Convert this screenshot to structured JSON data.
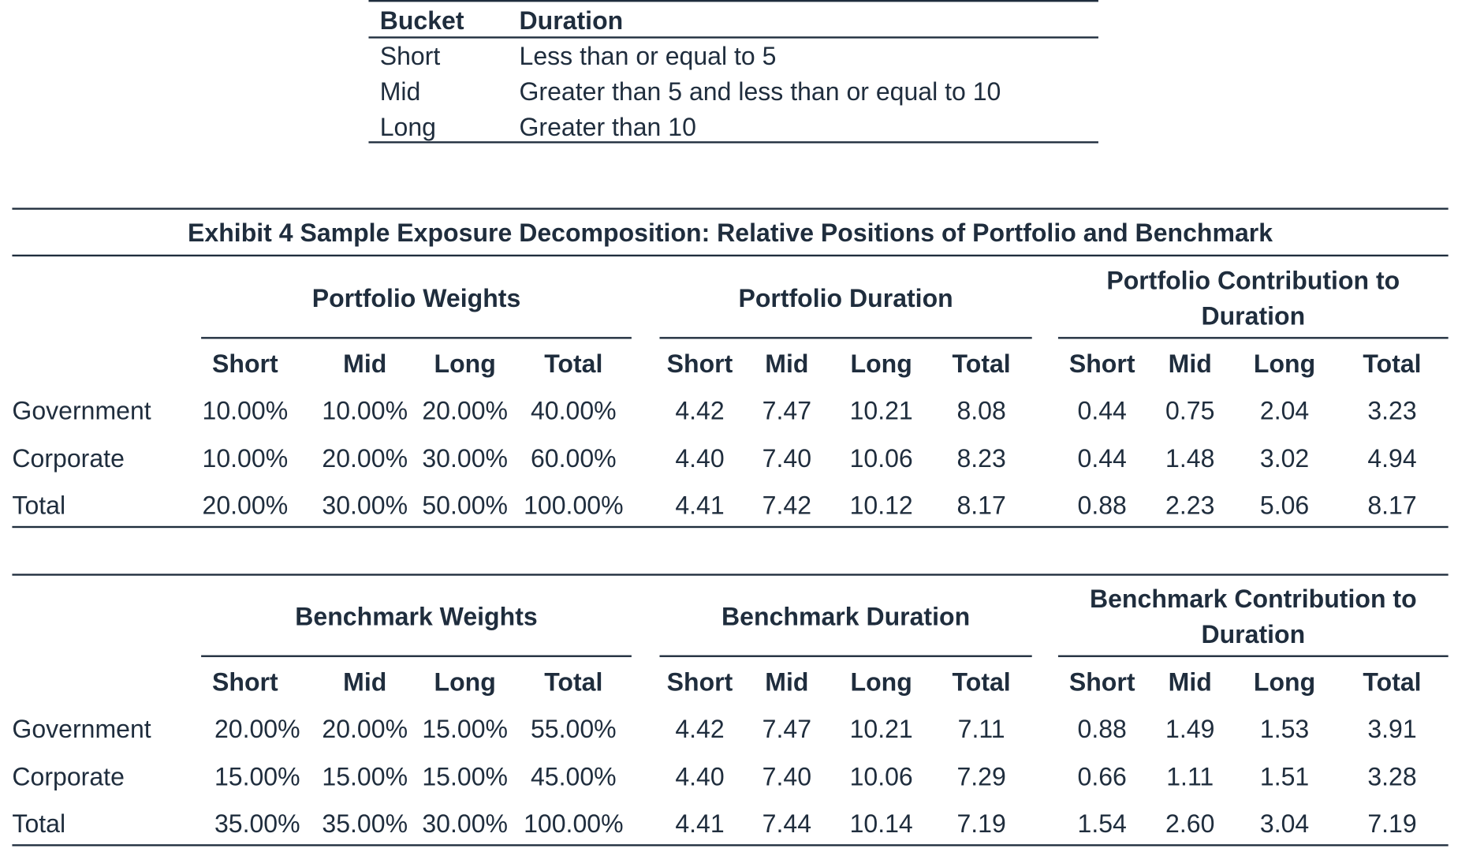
{
  "bucket_table": {
    "headers": [
      "Bucket",
      "Duration"
    ],
    "rows": [
      [
        "Short",
        "Less than or equal to 5"
      ],
      [
        "Mid",
        "Greater than 5 and less than or equal to 10"
      ],
      [
        "Long",
        "Greater than 10"
      ]
    ]
  },
  "exhibit": {
    "title": "Exhibit 4  Sample Exposure Decomposition: Relative Positions of Portfolio and Benchmark"
  },
  "portfolio": {
    "groups": [
      "Portfolio Weights",
      "Portfolio Duration",
      "Portfolio Contribution to",
      "Duration"
    ],
    "subheaders": [
      "Short",
      "Mid",
      "Long",
      "Total",
      "Short",
      "Mid",
      "Long",
      "Total",
      "Short",
      "Mid",
      "Long",
      "Total"
    ],
    "rows": [
      [
        "Government",
        "10.00%",
        "10.00%",
        "20.00%",
        "40.00%",
        "4.42",
        "7.47",
        "10.21",
        "8.08",
        "0.44",
        "0.75",
        "2.04",
        "3.23"
      ],
      [
        "Corporate",
        "10.00%",
        "20.00%",
        "30.00%",
        "60.00%",
        "4.40",
        "7.40",
        "10.06",
        "8.23",
        "0.44",
        "1.48",
        "3.02",
        "4.94"
      ],
      [
        "Total",
        "20.00%",
        "30.00%",
        "50.00%",
        "100.00%",
        "4.41",
        "7.42",
        "10.12",
        "8.17",
        "0.88",
        "2.23",
        "5.06",
        "8.17"
      ]
    ]
  },
  "benchmark": {
    "groups": [
      "Benchmark Weights",
      "Benchmark Duration",
      "Benchmark Contribution to",
      "Duration"
    ],
    "subheaders": [
      "Short",
      "Mid",
      "Long",
      "Total",
      "Short",
      "Mid",
      "Long",
      "Total",
      "Short",
      "Mid",
      "Long",
      "Total"
    ],
    "rows": [
      [
        "Government",
        "20.00%",
        "20.00%",
        "15.00%",
        "55.00%",
        "4.42",
        "7.47",
        "10.21",
        "7.11",
        "0.88",
        "1.49",
        "1.53",
        "3.91"
      ],
      [
        "Corporate",
        "15.00%",
        "15.00%",
        "15.00%",
        "45.00%",
        "4.40",
        "7.40",
        "10.06",
        "7.29",
        "0.66",
        "1.11",
        "1.51",
        "3.28"
      ],
      [
        "Total",
        "35.00%",
        "35.00%",
        "30.00%",
        "100.00%",
        "4.41",
        "7.44",
        "10.14",
        "7.19",
        "1.54",
        "2.60",
        "3.04",
        "7.19"
      ]
    ]
  }
}
